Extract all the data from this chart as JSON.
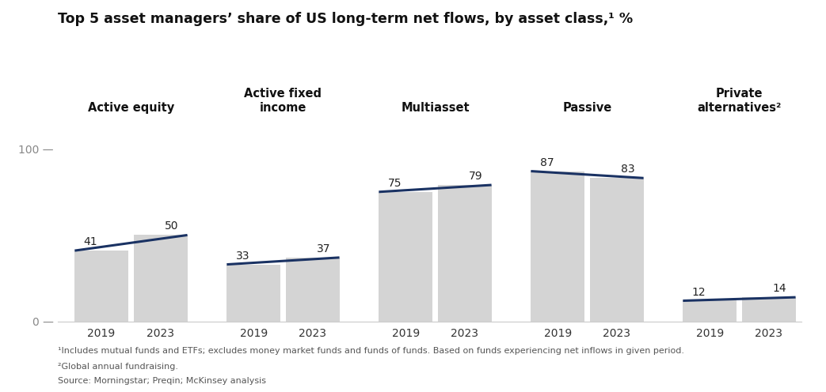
{
  "title": "Top 5 asset managers’ share of US long-term net flows, by asset class,¹ %",
  "categories": [
    "Active equity",
    "Active fixed\nincome",
    "Multiasset",
    "Passive",
    "Private\nalternatives²"
  ],
  "values_2019": [
    41,
    33,
    75,
    87,
    12
  ],
  "values_2023": [
    50,
    37,
    79,
    83,
    14
  ],
  "bar_color": "#d4d4d4",
  "line_color": "#1a3263",
  "ylim_max": 100,
  "footnote1": "¹Includes mutual funds and ETFs; excludes money market funds and funds of funds. Based on funds experiencing net inflows in given period.",
  "footnote2": "²Global annual fundraising.",
  "footnote3": "Source: Morningstar; Preqin; McKinsey analysis",
  "background_color": "#ffffff",
  "title_fontsize": 12.5,
  "value_fontsize": 10,
  "xtick_fontsize": 10,
  "ytick_fontsize": 10,
  "footnote_fontsize": 8,
  "category_fontsize": 10.5
}
